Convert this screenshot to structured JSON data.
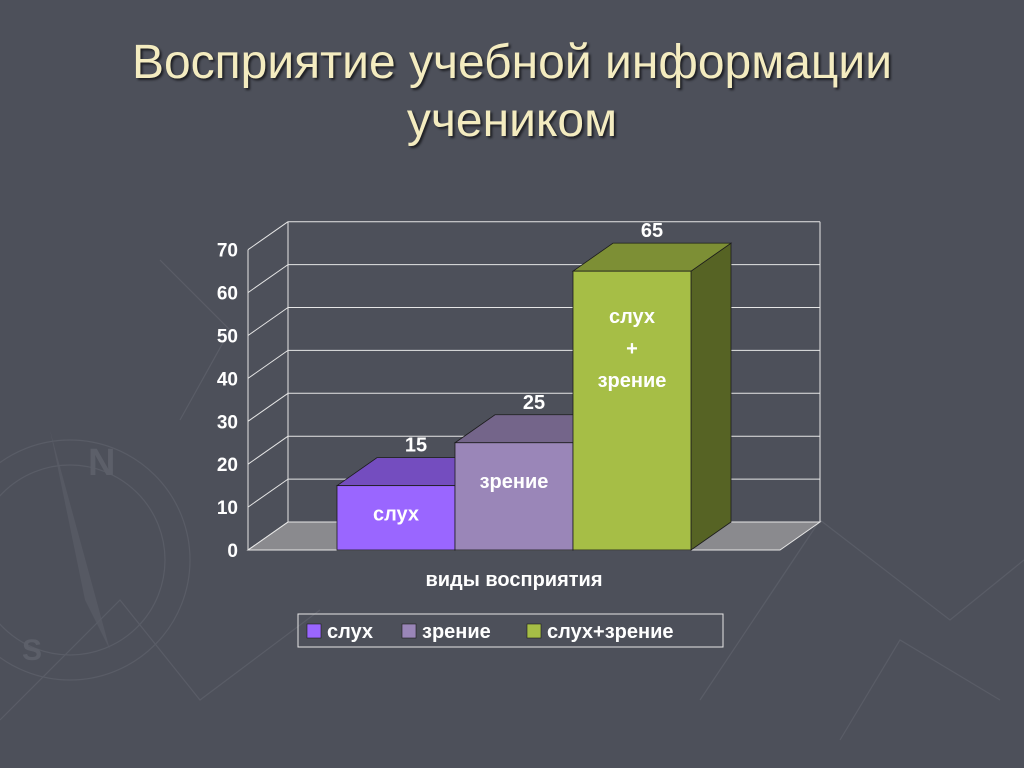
{
  "slide": {
    "title_line1": "Восприятие учебной информации",
    "title_line2": "учеником"
  },
  "colors": {
    "background": "#4d505a",
    "title": "#f4ecc0",
    "slux": "#9a66ff",
    "zrenie": "#9a86b8",
    "slux_zrenie": "#a6be46"
  },
  "chart_data": {
    "type": "bar",
    "style": "3d",
    "categories": [
      "слух",
      "зрение",
      "слух\n+\nзрение"
    ],
    "values": [
      15,
      25,
      65
    ],
    "bar_labels": [
      [
        "слух"
      ],
      [
        "зрение"
      ],
      [
        "слух",
        "+",
        "зрение"
      ]
    ],
    "series_names": [
      "слух",
      "зрение",
      "слух+зрение"
    ],
    "xlabel": "виды восприятия",
    "ylabel": "",
    "ylim": [
      0,
      70
    ],
    "yticks": [
      0,
      10,
      20,
      30,
      40,
      50,
      60,
      70
    ],
    "grid": true,
    "legend": {
      "position": "bottom",
      "items": [
        "слух",
        "зрение",
        "слух+зрение"
      ]
    }
  }
}
